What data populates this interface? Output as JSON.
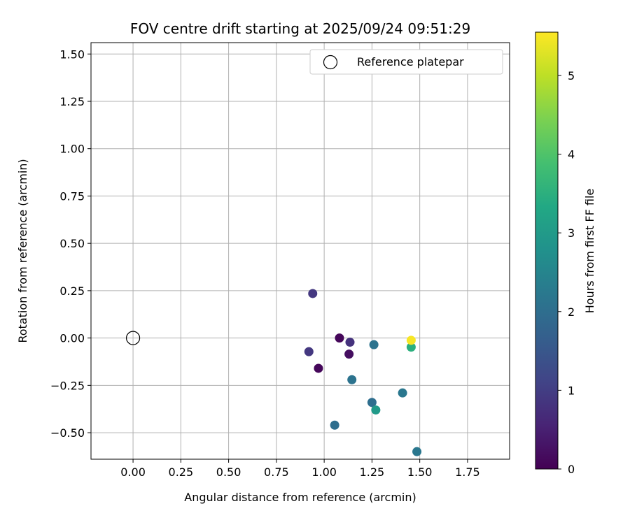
{
  "chart_data": {
    "type": "scatter",
    "title": "FOV centre drift starting at 2025/09/24 09:51:29",
    "xlabel": "Angular distance from reference (arcmin)",
    "ylabel": "Rotation from reference (arcmin)",
    "xlim": [
      -0.22,
      1.97
    ],
    "ylim": [
      -0.64,
      1.56
    ],
    "xticks": [
      "0.00",
      "0.25",
      "0.50",
      "0.75",
      "1.00",
      "1.25",
      "1.50",
      "1.75"
    ],
    "yticks": [
      "−0.50",
      "−0.25",
      "0.00",
      "0.25",
      "0.50",
      "0.75",
      "1.00",
      "1.25",
      "1.50"
    ],
    "grid": true,
    "legend": {
      "label": "Reference platepar",
      "placement": "top-right"
    },
    "reference_point": {
      "x": 0.0,
      "y": 0.0
    },
    "points": [
      {
        "x": 0.94,
        "y": 0.235,
        "hours": 0.9
      },
      {
        "x": 0.92,
        "y": -0.072,
        "hours": 0.9
      },
      {
        "x": 0.97,
        "y": -0.16,
        "hours": 0.1
      },
      {
        "x": 1.08,
        "y": 0.0,
        "hours": 0.1
      },
      {
        "x": 1.13,
        "y": -0.085,
        "hours": 0.2
      },
      {
        "x": 1.135,
        "y": -0.022,
        "hours": 0.8
      },
      {
        "x": 1.145,
        "y": -0.22,
        "hours": 2.1
      },
      {
        "x": 1.26,
        "y": -0.035,
        "hours": 2.1
      },
      {
        "x": 1.055,
        "y": -0.46,
        "hours": 2.0
      },
      {
        "x": 1.25,
        "y": -0.34,
        "hours": 2.0
      },
      {
        "x": 1.27,
        "y": -0.38,
        "hours": 3.0
      },
      {
        "x": 1.41,
        "y": -0.29,
        "hours": 2.2
      },
      {
        "x": 1.455,
        "y": -0.048,
        "hours": 3.5
      },
      {
        "x": 1.455,
        "y": -0.012,
        "hours": 5.5
      },
      {
        "x": 1.485,
        "y": -0.6,
        "hours": 2.2
      }
    ],
    "colorbar": {
      "label": "Hours from first FF file",
      "range": [
        0,
        5.55
      ],
      "ticks": [
        "0",
        "1",
        "2",
        "3",
        "4",
        "5"
      ],
      "colormap": "viridis"
    }
  }
}
